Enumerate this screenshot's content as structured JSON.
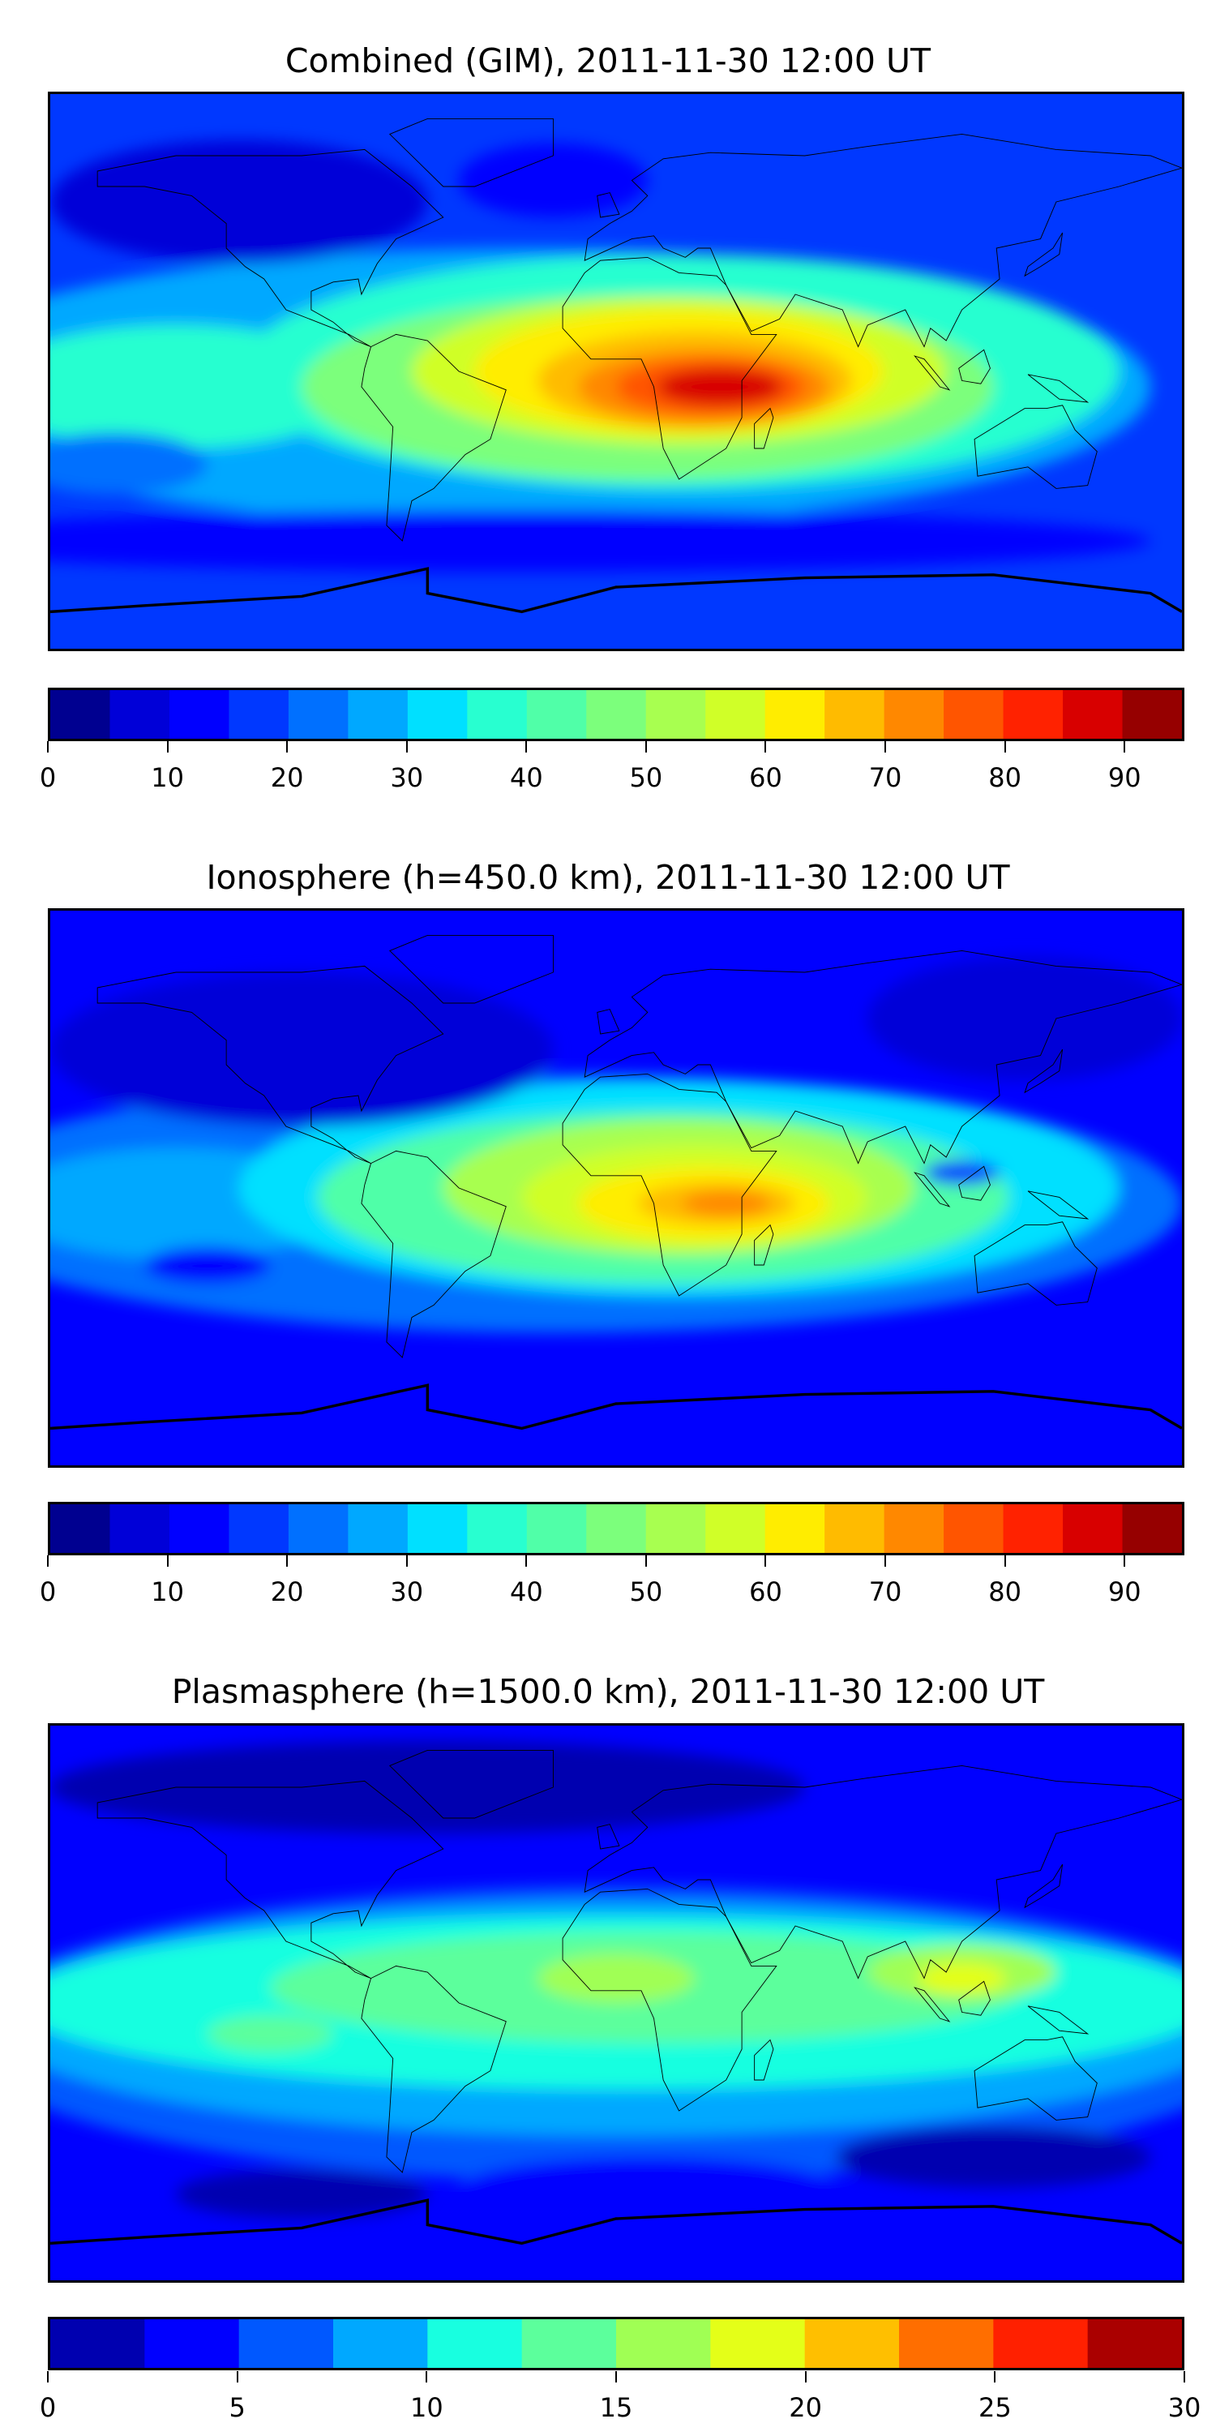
{
  "chart_data": [
    {
      "type": "heatmap",
      "title": "Combined (GIM), 2011-11-30 12:00 UT",
      "projection": "equirectangular world map",
      "colormap": "jet",
      "levels": [
        0,
        5,
        10,
        15,
        20,
        25,
        30,
        35,
        40,
        45,
        50,
        55,
        60,
        65,
        70,
        75,
        80,
        85,
        90,
        95
      ],
      "tick_labels": [
        "0",
        "10",
        "20",
        "30",
        "40",
        "50",
        "60",
        "70",
        "80",
        "90"
      ],
      "tick_values": [
        0,
        10,
        20,
        30,
        40,
        50,
        60,
        70,
        80,
        90
      ],
      "colorbar_colors": [
        "#000090",
        "#0000d8",
        "#0000ff",
        "#0038ff",
        "#0070ff",
        "#00a8ff",
        "#00e0ff",
        "#28ffd0",
        "#50ffa8",
        "#7cff7c",
        "#a8ff50",
        "#d0ff28",
        "#ffed00",
        "#ffbb00",
        "#ff8800",
        "#ff5500",
        "#ff2200",
        "#d80000",
        "#960000"
      ],
      "vmax": 95,
      "peak_region": "central Africa / Indian Ocean, ~85-90"
    },
    {
      "type": "heatmap",
      "title": "Ionosphere  (h=450.0 km), 2011-11-30 12:00 UT",
      "projection": "equirectangular world map",
      "colormap": "jet",
      "levels": [
        0,
        5,
        10,
        15,
        20,
        25,
        30,
        35,
        40,
        45,
        50,
        55,
        60,
        65,
        70,
        75,
        80,
        85,
        90,
        95
      ],
      "tick_labels": [
        "0",
        "10",
        "20",
        "30",
        "40",
        "50",
        "60",
        "70",
        "80",
        "90"
      ],
      "tick_values": [
        0,
        10,
        20,
        30,
        40,
        50,
        60,
        70,
        80,
        90
      ],
      "colorbar_colors": [
        "#000090",
        "#0000d8",
        "#0000ff",
        "#0038ff",
        "#0070ff",
        "#00a8ff",
        "#00e0ff",
        "#28ffd0",
        "#50ffa8",
        "#7cff7c",
        "#a8ff50",
        "#d0ff28",
        "#ffed00",
        "#ffbb00",
        "#ff8800",
        "#ff5500",
        "#ff2200",
        "#d80000",
        "#960000"
      ],
      "vmax": 95,
      "peak_region": "central Africa, ~70-75"
    },
    {
      "type": "heatmap",
      "title": "Plasmasphere (h=1500.0 km), 2011-11-30 12:00 UT",
      "projection": "equirectangular world map",
      "colormap": "jet",
      "levels": [
        0,
        2.5,
        5,
        7.5,
        10,
        12.5,
        15,
        17.5,
        20,
        22.5,
        25,
        27.5,
        30
      ],
      "tick_labels": [
        "0",
        "5",
        "10",
        "15",
        "20",
        "25",
        "30"
      ],
      "tick_values": [
        0,
        5,
        10,
        15,
        20,
        25,
        30
      ],
      "colorbar_colors": [
        "#0000b0",
        "#0000ff",
        "#0058ff",
        "#00a8ff",
        "#18ffe0",
        "#5cff9c",
        "#a0ff54",
        "#e4ff18",
        "#ffbf00",
        "#ff6e00",
        "#ff2000",
        "#aa0000"
      ],
      "vmax": 30,
      "peak_region": "Southeast Asia, ~17.5-20"
    }
  ]
}
